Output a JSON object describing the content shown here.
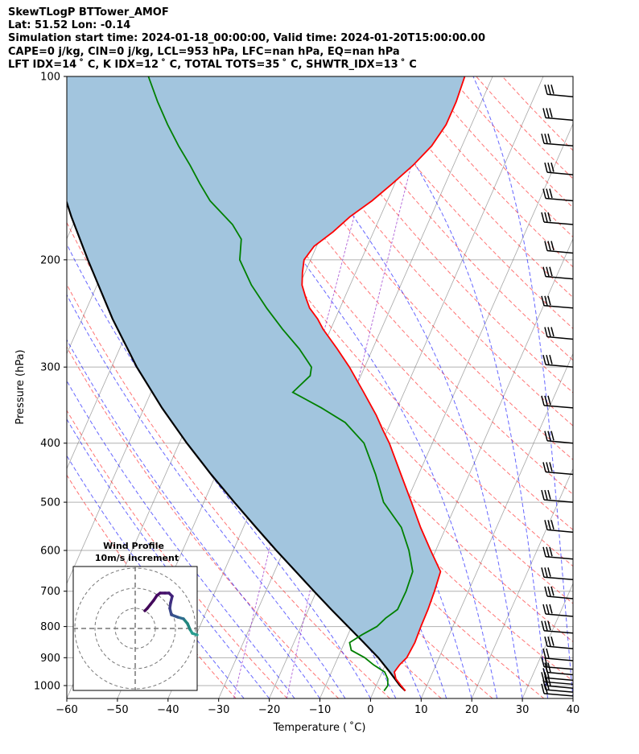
{
  "header": {
    "line1": "SkewTLogP BTTower_AMOF",
    "line2": "Lat: 51.52   Lon: -0.14",
    "line3": "Simulation start time: 2024-01-18_00:00:00, Valid time: 2024-01-20T15:00:00.00",
    "line4": "CAPE=0 j/kg, CIN=0 j/kg, LCL=953 hPa, LFC=nan hPa, EQ=nan hPa",
    "line5": "LFT IDX=14 ˚ C, K IDX=12 ˚ C, TOTAL TOTS=35 ˚ C, SHWTR_IDX=13 ˚ C"
  },
  "chart_data": {
    "type": "skewt",
    "xlabel": "Temperature ( ˚C)",
    "ylabel": "Pressure (hPa)",
    "xlim": [
      -60,
      40
    ],
    "ylim": [
      1050,
      100
    ],
    "y_scale": "log",
    "x_ticks": [
      "−60",
      "−50",
      "−40",
      "−30",
      "−20",
      "−10",
      "0",
      "10",
      "20",
      "30",
      "40"
    ],
    "x_tick_values": [
      -60,
      -50,
      -40,
      -30,
      -20,
      -10,
      0,
      10,
      20,
      30,
      40
    ],
    "y_ticks": [
      100,
      200,
      300,
      400,
      500,
      600,
      700,
      800,
      900,
      1000
    ],
    "grid": true,
    "skew_deg_per_decade": 53,
    "temperature": {
      "color": "#ff0000",
      "p": [
        1020,
        1000,
        975,
        950,
        925,
        900,
        850,
        800,
        750,
        700,
        650,
        600,
        550,
        500,
        450,
        400,
        380,
        360,
        330,
        300,
        280,
        260,
        250,
        240,
        230,
        220,
        210,
        200,
        190,
        180,
        170,
        160,
        150,
        140,
        130,
        120,
        110,
        100
      ],
      "t": [
        6.2,
        4.9,
        3.3,
        2.4,
        2.8,
        3.6,
        3.9,
        3.7,
        3.6,
        3.3,
        2.8,
        -1.0,
        -5.0,
        -9.0,
        -13.5,
        -18.5,
        -21.0,
        -23.5,
        -28.0,
        -33.0,
        -37.0,
        -41.5,
        -43.5,
        -46.0,
        -47.8,
        -49.5,
        -50.5,
        -51.3,
        -50.5,
        -48.0,
        -46.0,
        -43.0,
        -40.5,
        -38.0,
        -36.0,
        -35.0,
        -35.0,
        -35.5
      ]
    },
    "dewpoint": {
      "color": "#008000",
      "p": [
        1020,
        1000,
        975,
        950,
        925,
        900,
        875,
        850,
        825,
        800,
        775,
        750,
        700,
        650,
        600,
        550,
        500,
        450,
        400,
        370,
        350,
        330,
        310,
        300,
        280,
        260,
        240,
        220,
        200,
        185,
        175,
        160,
        150,
        140,
        130,
        120,
        110,
        100
      ],
      "t": [
        2.0,
        2.3,
        1.7,
        0.5,
        -2.3,
        -4.7,
        -8.0,
        -9.0,
        -7.2,
        -5.0,
        -4.0,
        -2.4,
        -2.3,
        -2.7,
        -5.3,
        -8.8,
        -14.5,
        -18.5,
        -23.5,
        -29.0,
        -35.0,
        -42.0,
        -40.0,
        -40.5,
        -44.5,
        -49.5,
        -54.5,
        -59.5,
        -64.0,
        -65.5,
        -68.5,
        -75.0,
        -78.5,
        -82.0,
        -86.0,
        -90.0,
        -94.0,
        -98.0
      ]
    },
    "parcel": {
      "color": "#000000",
      "p": [
        1020,
        1000,
        950,
        900,
        850,
        800,
        750,
        700,
        650,
        600,
        550,
        500,
        450,
        400,
        350,
        300,
        250,
        200,
        170,
        150,
        130,
        115,
        100
      ],
      "t": [
        6.2,
        4.7,
        1.5,
        -2.0,
        -6.2,
        -10.7,
        -15.5,
        -20.5,
        -25.8,
        -31.5,
        -37.5,
        -44.0,
        -51.0,
        -58.5,
        -66.5,
        -75.0,
        -84.0,
        -94.0,
        -101.0,
        -106.0,
        -111.0,
        -115.0,
        -119.0
      ]
    },
    "cin_shade_color": "#a2c5de",
    "dry_adiabats_color": "#ff0000",
    "moist_adiabats_color": "#0000ff",
    "isotherm_color": "#808080",
    "wind_barbs_p": [
      1040,
      1025,
      1010,
      995,
      980,
      960,
      940,
      910,
      870,
      820,
      770,
      720,
      670,
      620,
      560,
      500,
      450,
      400,
      350,
      300,
      270,
      240,
      215,
      195,
      175,
      160,
      145,
      130,
      118,
      108
    ],
    "wind_profile_inset": {
      "title": "Wind Profile",
      "subtitle": "10m/s increment",
      "rings_ms": [
        10,
        20,
        30
      ]
    }
  }
}
